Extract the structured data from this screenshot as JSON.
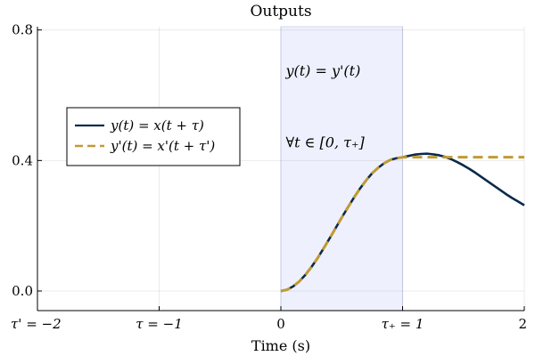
{
  "chart_data": {
    "type": "line",
    "title": "Outputs",
    "xlabel": "Time (s)",
    "ylabel": "",
    "xlim": [
      -2,
      2
    ],
    "ylim": [
      -0.06,
      0.81
    ],
    "grid": true,
    "legend_position": "left",
    "x_ticks": [
      {
        "value": -2,
        "label": "τ' = −2"
      },
      {
        "value": -1,
        "label": "τ = −1"
      },
      {
        "value": 0,
        "label": "0"
      },
      {
        "value": 1,
        "label": "τ₊ = 1"
      },
      {
        "value": 2,
        "label": "2"
      }
    ],
    "y_ticks": [
      {
        "value": 0.0,
        "label": "0.0"
      },
      {
        "value": 0.4,
        "label": "0.4"
      },
      {
        "value": 0.8,
        "label": "0.8"
      }
    ],
    "shaded_region": {
      "x_start": 0,
      "x_end": 1,
      "color": "#eef1fd"
    },
    "annotations": [
      {
        "text": "y(t) = y'(t)",
        "x": 0.04,
        "y": 0.66
      },
      {
        "text": "∀t ∈ [0, τ₊]",
        "x": 0.04,
        "y": 0.44
      }
    ],
    "series": [
      {
        "name": "y(t) = x(t + τ)",
        "color": "#0b2a4a",
        "style": "solid",
        "x": [
          0,
          0.05,
          0.1,
          0.15,
          0.2,
          0.25,
          0.3,
          0.35,
          0.4,
          0.45,
          0.5,
          0.55,
          0.6,
          0.65,
          0.7,
          0.75,
          0.8,
          0.85,
          0.9,
          0.95,
          1.0,
          1.05,
          1.1,
          1.15,
          1.2,
          1.25,
          1.3,
          1.35,
          1.4,
          1.45,
          1.5,
          1.55,
          1.6,
          1.65,
          1.7,
          1.75,
          1.8,
          1.85,
          1.9,
          1.95,
          2.0
        ],
        "y": [
          0.0,
          0.004,
          0.014,
          0.029,
          0.049,
          0.073,
          0.1,
          0.13,
          0.161,
          0.193,
          0.225,
          0.256,
          0.286,
          0.314,
          0.339,
          0.361,
          0.378,
          0.392,
          0.402,
          0.407,
          0.41,
          0.414,
          0.418,
          0.42,
          0.421,
          0.419,
          0.416,
          0.411,
          0.404,
          0.395,
          0.385,
          0.374,
          0.362,
          0.349,
          0.336,
          0.323,
          0.31,
          0.297,
          0.285,
          0.274,
          0.263
        ]
      },
      {
        "name": "y'(t) = x'(t + τ')",
        "color": "#c09a35",
        "style": "dashed",
        "x": [
          0,
          0.05,
          0.1,
          0.15,
          0.2,
          0.25,
          0.3,
          0.35,
          0.4,
          0.45,
          0.5,
          0.55,
          0.6,
          0.65,
          0.7,
          0.75,
          0.8,
          0.85,
          0.9,
          0.95,
          1.0,
          1.25,
          1.5,
          1.75,
          2.0
        ],
        "y": [
          0.0,
          0.004,
          0.014,
          0.029,
          0.049,
          0.073,
          0.1,
          0.13,
          0.161,
          0.193,
          0.225,
          0.256,
          0.286,
          0.314,
          0.339,
          0.361,
          0.378,
          0.392,
          0.402,
          0.407,
          0.41,
          0.41,
          0.41,
          0.41,
          0.41
        ]
      }
    ]
  }
}
